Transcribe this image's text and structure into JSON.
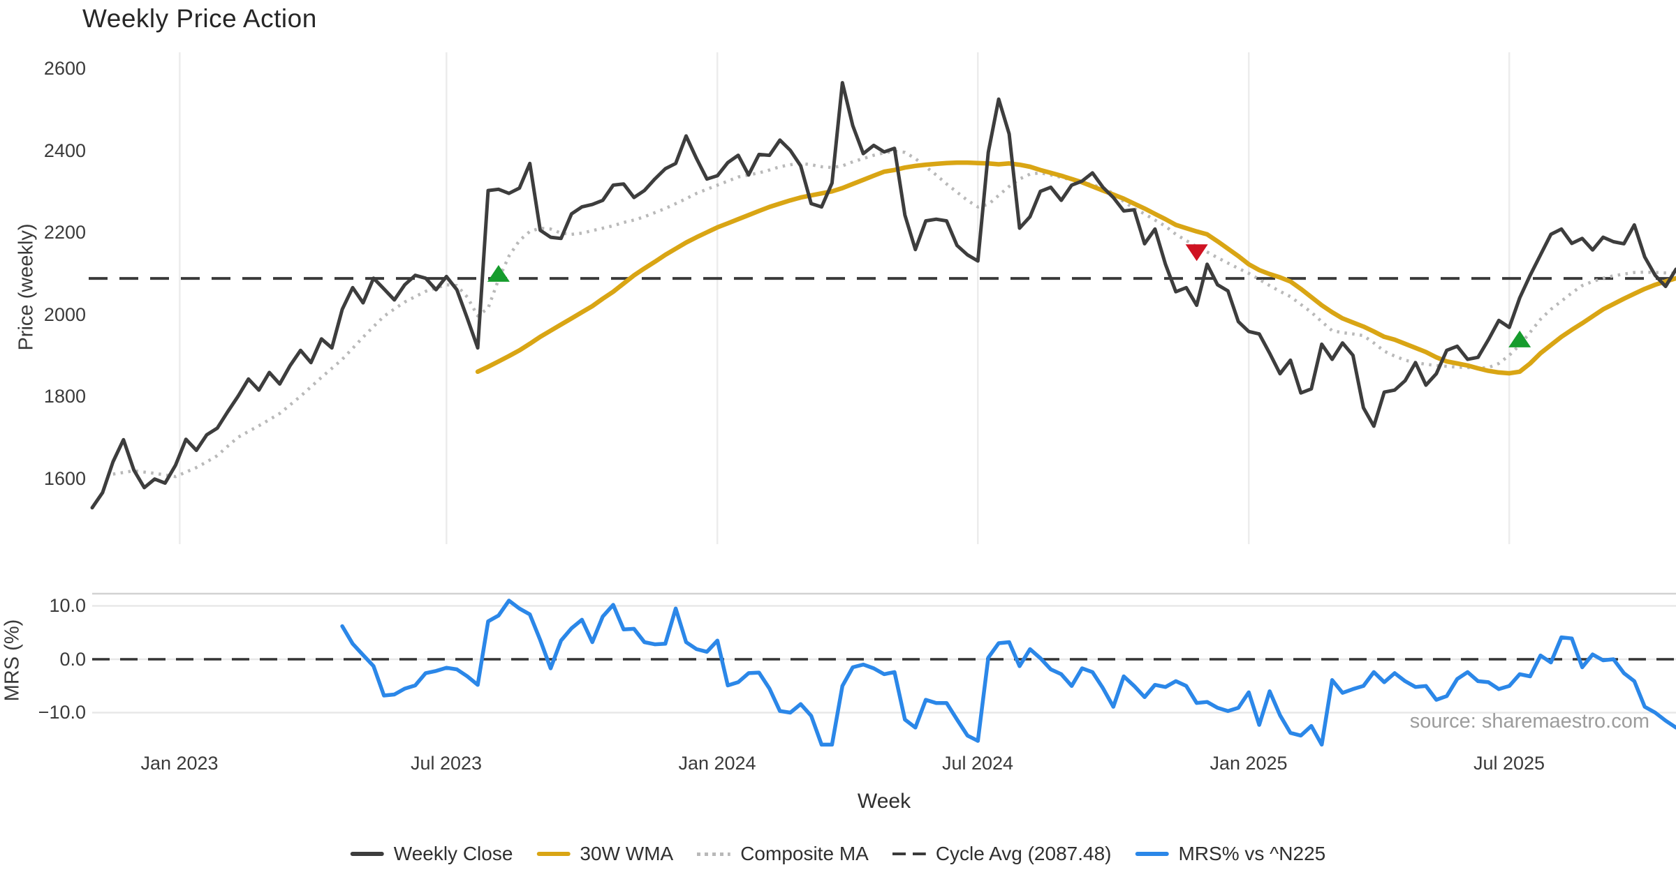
{
  "page": {
    "title": "Weekly Price Action"
  },
  "chart_data": {
    "type": "line",
    "title": "Weekly Price Action",
    "xlabel": "Week",
    "x_tick_labels": [
      "Jan 2023",
      "Jul 2023",
      "Jan 2024",
      "Jul 2024",
      "Jan 2025",
      "Jul 2025"
    ],
    "x_tick_weeks": [
      8.4,
      34,
      60,
      85,
      111,
      136
    ],
    "weeks_total": 153,
    "grid": "vertical-light",
    "legend_position": "bottom-center",
    "panels": [
      {
        "name": "price",
        "ylabel": "Price (weekly)",
        "ylim": [
          1460,
          2640
        ],
        "yticks": [
          2600,
          2400,
          2200,
          2000,
          1800,
          1600
        ],
        "ytick_labels": [
          "2600",
          "2400",
          "2200",
          "2000",
          "1800",
          "1600"
        ],
        "cycle_avg": 2087.48,
        "series": [
          {
            "name": "Weekly Close",
            "color": "#3d3d3d",
            "style": "solid",
            "width": 5,
            "start_week": 0,
            "values": [
              1528,
              1565,
              1640,
              1694,
              1620,
              1577,
              1598,
              1588,
              1632,
              1695,
              1668,
              1706,
              1722,
              1762,
              1800,
              1842,
              1815,
              1858,
              1830,
              1875,
              1912,
              1882,
              1940,
              1918,
              2012,
              2065,
              2028,
              2088,
              2062,
              2035,
              2072,
              2095,
              2088,
              2060,
              2092,
              2060,
              1990,
              1918,
              2302,
              2305,
              2295,
              2308,
              2368,
              2205,
              2188,
              2185,
              2245,
              2262,
              2268,
              2278,
              2315,
              2318,
              2285,
              2302,
              2330,
              2355,
              2368,
              2435,
              2380,
              2330,
              2338,
              2370,
              2388,
              2340,
              2390,
              2388,
              2425,
              2400,
              2362,
              2270,
              2262,
              2320,
              2565,
              2460,
              2392,
              2412,
              2396,
              2405,
              2242,
              2158,
              2228,
              2232,
              2228,
              2168,
              2145,
              2130,
              2395,
              2525,
              2440,
              2210,
              2238,
              2300,
              2310,
              2278,
              2315,
              2325,
              2345,
              2310,
              2285,
              2252,
              2255,
              2172,
              2208,
              2122,
              2055,
              2065,
              2022,
              2122,
              2072,
              2057,
              1982,
              1958,
              1952,
              1905,
              1855,
              1888,
              1808,
              1818,
              1927,
              1890,
              1930,
              1900,
              1772,
              1727,
              1810,
              1815,
              1838,
              1882,
              1827,
              1855,
              1912,
              1922,
              1890,
              1895,
              1938,
              1985,
              1968,
              2040,
              2095,
              2145,
              2195,
              2208,
              2173,
              2185,
              2157,
              2188,
              2177,
              2172,
              2218,
              2140,
              2095,
              2068,
              2110
            ]
          },
          {
            "name": "30W WMA",
            "color": "#d9a514",
            "style": "solid",
            "width": 6.5,
            "start_week": 37,
            "values": [
              1860,
              1872,
              1885,
              1898,
              1912,
              1928,
              1945,
              1960,
              1975,
              1990,
              2005,
              2020,
              2038,
              2055,
              2075,
              2095,
              2112,
              2128,
              2145,
              2160,
              2175,
              2188,
              2200,
              2212,
              2222,
              2232,
              2242,
              2252,
              2262,
              2270,
              2278,
              2285,
              2290,
              2295,
              2300,
              2308,
              2318,
              2328,
              2338,
              2348,
              2352,
              2358,
              2362,
              2365,
              2367,
              2369,
              2370,
              2370,
              2369,
              2368,
              2366,
              2368,
              2365,
              2360,
              2352,
              2345,
              2338,
              2330,
              2322,
              2312,
              2302,
              2292,
              2282,
              2270,
              2258,
              2245,
              2232,
              2218,
              2210,
              2202,
              2195,
              2178,
              2160,
              2142,
              2122,
              2108,
              2098,
              2090,
              2080,
              2062,
              2042,
              2022,
              2005,
              1990,
              1980,
              1970,
              1958,
              1945,
              1938,
              1928,
              1918,
              1908,
              1895,
              1885,
              1880,
              1875,
              1868,
              1862,
              1858,
              1856,
              1860,
              1880,
              1905,
              1925,
              1945,
              1962,
              1978,
              1995,
              2012,
              2025,
              2038,
              2050,
              2062,
              2072,
              2080,
              2088
            ]
          },
          {
            "name": "Composite MA",
            "color": "#b9b9b9",
            "style": "dotted",
            "width": 4.5,
            "start_week": 2,
            "values": [
              1610,
              1614,
              1618,
              1615,
              1612,
              1608,
              1604,
              1615,
              1626,
              1640,
              1655,
              1678,
              1700,
              1714,
              1728,
              1743,
              1758,
              1779,
              1800,
              1823,
              1846,
              1868,
              1890,
              1917,
              1944,
              1970,
              1995,
              2013,
              2030,
              2043,
              2056,
              2064,
              2072,
              2070,
              2042,
              1996,
              2015,
              2085,
              2142,
              2180,
              2202,
              2210,
              2208,
              2198,
              2195,
              2198,
              2204,
              2210,
              2216,
              2224,
              2230,
              2238,
              2248,
              2258,
              2270,
              2282,
              2295,
              2305,
              2315,
              2325,
              2335,
              2340,
              2345,
              2352,
              2360,
              2365,
              2368,
              2365,
              2360,
              2358,
              2362,
              2372,
              2380,
              2388,
              2394,
              2398,
              2395,
              2380,
              2360,
              2340,
              2318,
              2298,
              2278,
              2262,
              2268,
              2290,
              2312,
              2330,
              2342,
              2345,
              2340,
              2334,
              2328,
              2322,
              2316,
              2308,
              2295,
              2275,
              2258,
              2245,
              2230,
              2215,
              2195,
              2180,
              2165,
              2152,
              2138,
              2125,
              2112,
              2100,
              2085,
              2070,
              2056,
              2043,
              2024,
              2005,
              1982,
              1960,
              1955,
              1952,
              1948,
              1930,
              1910,
              1898,
              1888,
              1882,
              1878,
              1875,
              1873,
              1871,
              1870,
              1868,
              1870,
              1880,
              1900,
              1925,
              1956,
              1988,
              2012,
              2032,
              2052,
              2070,
              2080,
              2088,
              2094,
              2098,
              2102,
              2103,
              2102,
              2101,
              2100
            ]
          },
          {
            "name": "Cycle Avg (2087.48)",
            "color": "#3a3a3a",
            "style": "dashed",
            "width": 4,
            "constant": 2087.48
          }
        ],
        "markers": [
          {
            "shape": "triangle-up",
            "color": "#169c2d",
            "week": 39,
            "value": 2098,
            "meaning": "cross above cycle average"
          },
          {
            "shape": "triangle-down",
            "color": "#cf1322",
            "week": 106,
            "value": 2152,
            "meaning": "cross below cycle average"
          },
          {
            "shape": "triangle-up",
            "color": "#169c2d",
            "week": 137,
            "value": 1938,
            "meaning": "cross above moving averages"
          }
        ]
      },
      {
        "name": "mrs",
        "ylabel": "MRS (%)",
        "ylim": [
          -18,
          12.4
        ],
        "yticks": [
          10,
          0,
          -10
        ],
        "ytick_labels": [
          "10.0",
          "0.0",
          "−10.0"
        ],
        "zero_dashed": 0,
        "annotation": "source: sharemaestro.com",
        "series": [
          {
            "name": "MRS% vs ^N225",
            "color": "#2b87e8",
            "style": "solid",
            "width": 5.5,
            "start_week": 24,
            "values": [
              6.2,
              2.9,
              0.8,
              -1.3,
              -6.8,
              -6.6,
              -5.5,
              -4.9,
              -2.6,
              -2.2,
              -1.6,
              -1.9,
              -3.2,
              -4.8,
              7.1,
              8.2,
              11.0,
              9.5,
              8.4,
              3.6,
              -1.7,
              3.5,
              5.8,
              7.4,
              3.2,
              8.0,
              10.2,
              5.6,
              5.7,
              3.2,
              2.8,
              2.9,
              9.5,
              3.2,
              1.9,
              1.4,
              3.5,
              -4.9,
              -4.3,
              -2.6,
              -2.5,
              -5.5,
              -9.7,
              -10.0,
              -8.4,
              -10.6,
              -16.0,
              -16.0,
              -5.0,
              -1.5,
              -1.0,
              -1.7,
              -2.8,
              -2.4,
              -11.3,
              -12.8,
              -7.6,
              -8.2,
              -8.2,
              -11.3,
              -14.3,
              -15.3,
              0.3,
              3.0,
              3.2,
              -1.3,
              1.9,
              0.2,
              -1.9,
              -2.8,
              -5.0,
              -1.7,
              -2.4,
              -5.4,
              -8.9,
              -3.2,
              -5.0,
              -7.1,
              -4.8,
              -5.2,
              -4.1,
              -5.0,
              -8.2,
              -8.0,
              -9.1,
              -9.7,
              -9.1,
              -6.2,
              -12.3,
              -6.0,
              -10.5,
              -13.8,
              -14.3,
              -12.5,
              -16.0,
              -3.9,
              -6.3,
              -5.6,
              -5.0,
              -2.4,
              -4.3,
              -2.6,
              -4.1,
              -5.2,
              -5.0,
              -7.6,
              -6.9,
              -3.7,
              -2.4,
              -4.1,
              -4.3,
              -5.6,
              -5.0,
              -2.8,
              -3.2,
              0.7,
              -0.6,
              4.1,
              3.9,
              -1.5,
              0.9,
              -0.2,
              0.0,
              -2.6,
              -4.1,
              -8.9,
              -10.0,
              -11.5,
              -12.8
            ]
          }
        ]
      }
    ],
    "legend": [
      {
        "label": "Weekly Close",
        "color": "#3d3d3d",
        "style": "solid"
      },
      {
        "label": "30W WMA",
        "color": "#d9a514",
        "style": "solid"
      },
      {
        "label": "Composite MA",
        "color": "#b9b9b9",
        "style": "dotted"
      },
      {
        "label": "Cycle Avg (2087.48)",
        "color": "#3a3a3a",
        "style": "dashed"
      },
      {
        "label": "MRS% vs ^N225",
        "color": "#2b87e8",
        "style": "solid"
      }
    ]
  }
}
